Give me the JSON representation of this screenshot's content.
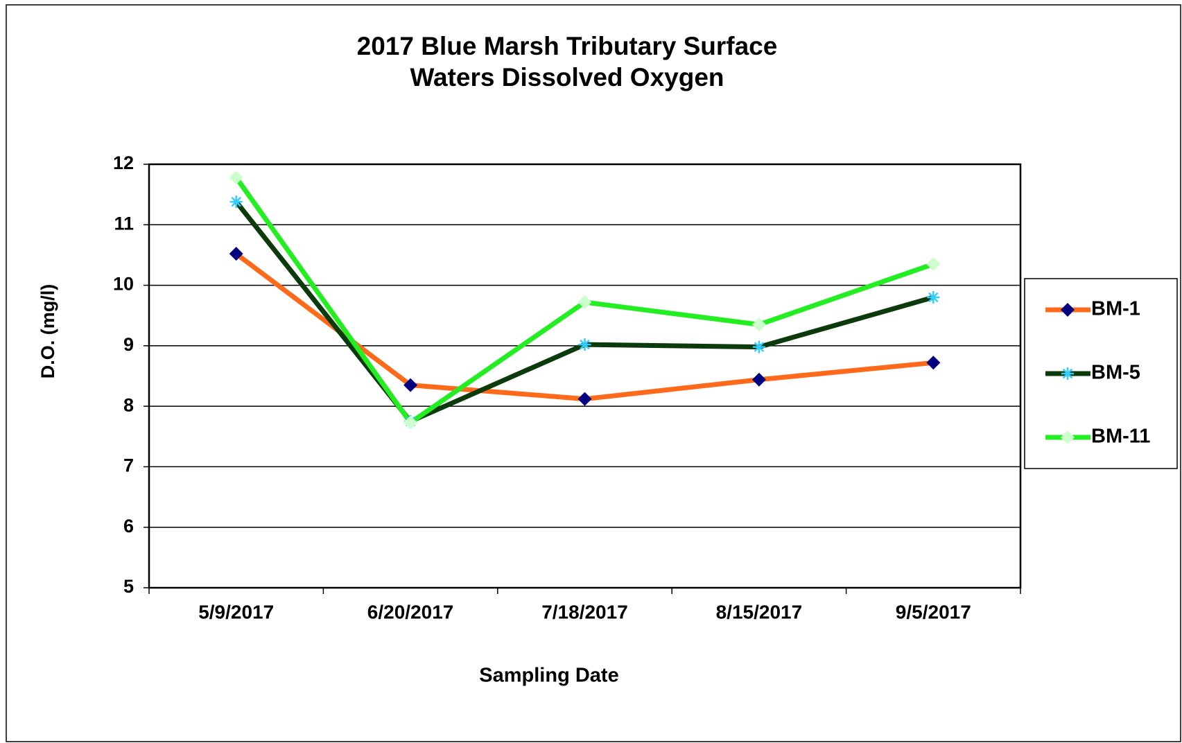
{
  "chart_data": {
    "type": "line",
    "title": "2017 Blue Marsh Tributary Surface Waters Dissolved Oxygen",
    "x_label": "Sampling Date",
    "y_label": "D.O. (mg/l)",
    "categories": [
      "5/9/2017",
      "6/20/2017",
      "7/18/2017",
      "8/15/2017",
      "9/5/2017"
    ],
    "series": [
      {
        "name": "BM-1",
        "color": "#ff6a1a",
        "marker": "diamond",
        "marker_color": "#000080",
        "values": [
          10.52,
          8.35,
          8.12,
          8.44,
          8.72
        ]
      },
      {
        "name": "BM-5",
        "color": "#0b3a0b",
        "marker": "asterisk",
        "marker_color": "#33ccff",
        "values": [
          11.38,
          7.75,
          9.02,
          8.98,
          9.8
        ]
      },
      {
        "name": "BM-11",
        "color": "#22ee22",
        "marker": "diamond",
        "marker_color": "#ccffcc",
        "values": [
          11.78,
          7.73,
          9.72,
          9.35,
          10.35
        ]
      }
    ],
    "ylim": [
      5,
      12
    ],
    "yticks": [
      5,
      6,
      7,
      8,
      9,
      10,
      11,
      12
    ],
    "grid": true,
    "legend": "right"
  }
}
